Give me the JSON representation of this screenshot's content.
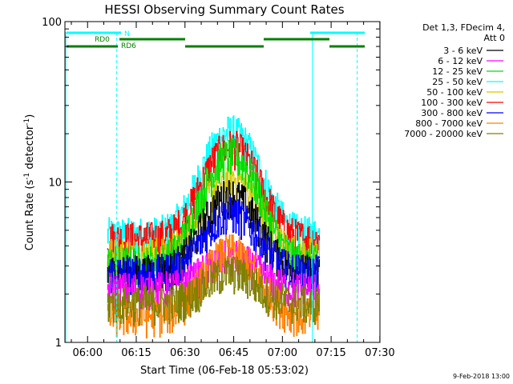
{
  "chart_data": {
    "type": "line",
    "title": "HESSI Observing Summary Count Rates",
    "xlabel": "Start Time (06-Feb-18 05:53:02)",
    "ylabel_main": "Count Rate (s",
    "ylabel_sup1": "-1",
    "ylabel_mid": " detector",
    "ylabel_sup2": "-1",
    "ylabel_end": ")",
    "yscale": "log",
    "ylim": [
      1,
      100
    ],
    "xlim_minutes": [
      0,
      97
    ],
    "x_ticks": [
      {
        "minute": 6.97,
        "label": "06:00"
      },
      {
        "minute": 21.97,
        "label": "06:15"
      },
      {
        "minute": 36.97,
        "label": "06:30"
      },
      {
        "minute": 51.97,
        "label": "06:45"
      },
      {
        "minute": 66.97,
        "label": "07:00"
      },
      {
        "minute": 81.97,
        "label": "07:15"
      },
      {
        "minute": 96.97,
        "label": "07:30"
      }
    ],
    "y_ticks": [
      {
        "value": 1,
        "label": "1"
      },
      {
        "value": 10,
        "label": "10"
      },
      {
        "value": 100,
        "label": "100"
      }
    ],
    "data_range_minutes": [
      13.0,
      78.5
    ],
    "series": [
      {
        "name": "3 - 6 keV",
        "color": "#000000",
        "base": 2.8,
        "peak": 8.5
      },
      {
        "name": "6 - 12 keV",
        "color": "#ff00ff",
        "base": 2.2,
        "peak": 3.5
      },
      {
        "name": "12 - 25 keV",
        "color": "#00e000",
        "base": 3.2,
        "peak": 15
      },
      {
        "name": "25 - 50 keV",
        "color": "#00ffff",
        "base": 4.8,
        "peak": 21
      },
      {
        "name": "50 - 100 keV",
        "color": "#d4c800",
        "base": 3.6,
        "peak": 11
      },
      {
        "name": "100 - 300 keV",
        "color": "#ff0000",
        "base": 4.5,
        "peak": 17
      },
      {
        "name": "300 - 800 keV",
        "color": "#0000ff",
        "base": 2.8,
        "peak": 6.5
      },
      {
        "name": "800 - 7000 keV",
        "color": "#ff8000",
        "base": 1.5,
        "peak": 3.8
      },
      {
        "name": "7000 - 20000 keV",
        "color": "#808000",
        "base": 1.8,
        "peak": 2.8
      }
    ],
    "legend_header_1": "Det 1,3, FDecim 4,",
    "legend_header_2": "Att 0",
    "attenuator_segments": [
      {
        "label": "N",
        "color": "#00ffff",
        "row": 1
      },
      {
        "label": "RD0",
        "color": "#008000",
        "row": 2
      },
      {
        "label": "RD6",
        "color": "#008000",
        "row": 3
      }
    ],
    "footer_date": "9-Feb-2018 13:00"
  }
}
